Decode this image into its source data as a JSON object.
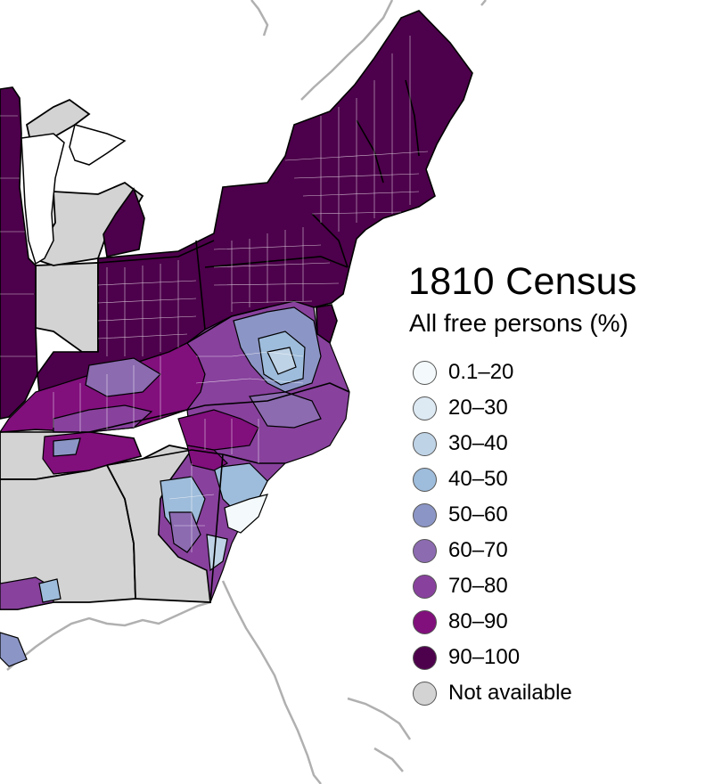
{
  "title": "1810 Census",
  "subtitle": "All free persons (%)",
  "legend": [
    {
      "label": "0.1–20",
      "color": "#f4fafb"
    },
    {
      "label": "20–30",
      "color": "#dde9f3"
    },
    {
      "label": "30–40",
      "color": "#bfd3e6"
    },
    {
      "label": "40–50",
      "color": "#9ebcdb"
    },
    {
      "label": "50–60",
      "color": "#8c96c6"
    },
    {
      "label": "60–70",
      "color": "#8c6bb1"
    },
    {
      "label": "70–80",
      "color": "#88419d"
    },
    {
      "label": "80–90",
      "color": "#810f7c"
    },
    {
      "label": "90–100",
      "color": "#4d004b"
    },
    {
      "label": "Not available",
      "color": "#d3d3d3"
    }
  ],
  "colors": {
    "land_unavailable": "#d3d3d3",
    "coastline": "#b0b0b0",
    "state_border": "#000000",
    "county_border": "#ffffff"
  }
}
